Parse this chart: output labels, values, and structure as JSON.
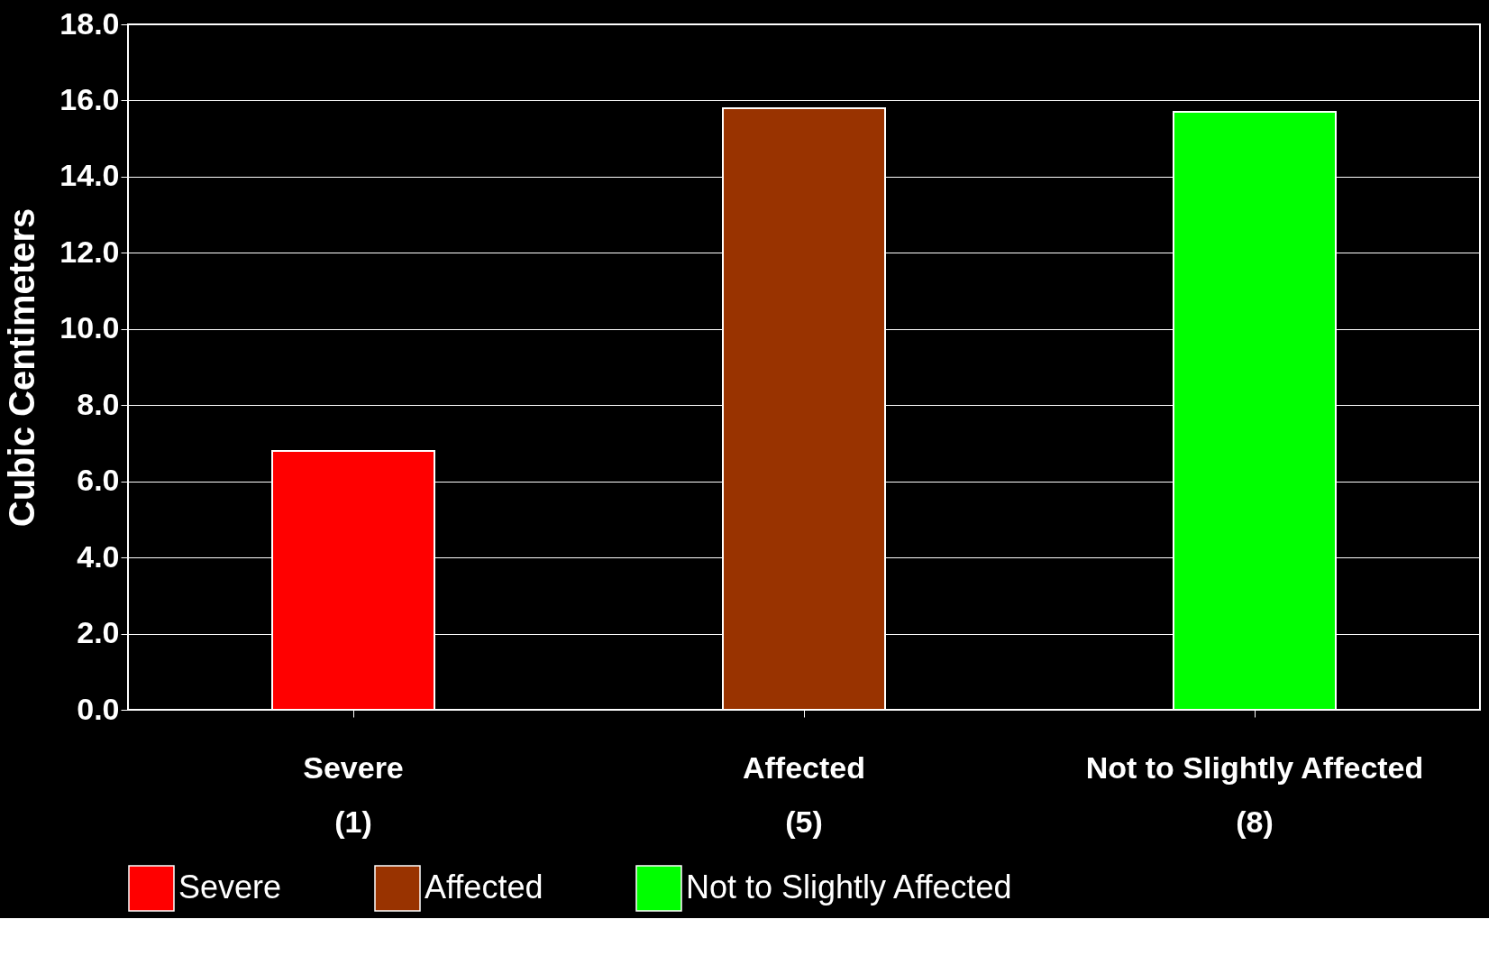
{
  "chart_data": {
    "type": "bar",
    "ylabel": "Cubic Centimeters",
    "categories": [
      "Severe\n(1)",
      "Affected\n(5)",
      "Not to Slightly Affected\n(8)"
    ],
    "series": [
      {
        "name": "Severe",
        "color": "#ff0000",
        "values": [
          6.8,
          null,
          null
        ]
      },
      {
        "name": "Affected",
        "color": "#993300",
        "values": [
          null,
          15.8,
          null
        ]
      },
      {
        "name": "Not to Slightly Affected",
        "color": "#00ff00",
        "values": [
          null,
          null,
          15.7
        ]
      }
    ],
    "ylim": [
      0,
      18
    ],
    "yticks": [
      {
        "value": 0,
        "label": "0.0"
      },
      {
        "value": 2,
        "label": "2.0"
      },
      {
        "value": 4,
        "label": "4.0"
      },
      {
        "value": 6,
        "label": "6.0"
      },
      {
        "value": 8,
        "label": "8.0"
      },
      {
        "value": 10,
        "label": "10.0"
      },
      {
        "value": 12,
        "label": "12.0"
      },
      {
        "value": 14,
        "label": "14.0"
      },
      {
        "value": 16,
        "label": "16.0"
      },
      {
        "value": 18,
        "label": "18.0"
      }
    ],
    "grid": "y",
    "legend": "bottom"
  }
}
